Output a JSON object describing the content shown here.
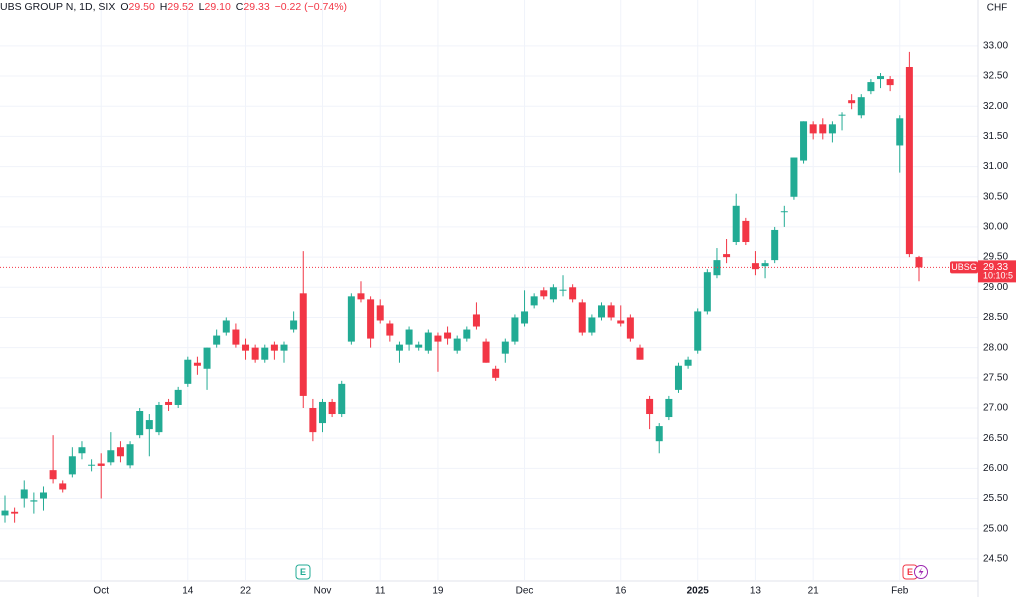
{
  "chart_data": {
    "type": "candlestick",
    "title": "UBS GROUP N, 1D, SIX",
    "ohlc_header": [
      {
        "key": "O",
        "value": "29.50"
      },
      {
        "key": "H",
        "value": "29.52"
      },
      {
        "key": "L",
        "value": "29.10"
      },
      {
        "key": "C",
        "value": "29.33"
      }
    ],
    "change": "−0.22 (−0.74%)",
    "currency": "CHF",
    "symbol": "UBSG",
    "countdown": "10:10:5",
    "events": [
      {
        "label": "E"
      },
      {
        "label": "E"
      }
    ],
    "up_color": "#22ab94",
    "down_color": "#f23645",
    "grid": true,
    "categories": [
      null,
      null,
      null,
      null,
      null,
      null,
      null,
      null,
      null,
      null,
      "Oct",
      null,
      null,
      null,
      null,
      null,
      null,
      null,
      null,
      "14",
      null,
      null,
      null,
      null,
      null,
      "22",
      null,
      null,
      null,
      null,
      null,
      null,
      null,
      "Nov",
      null,
      null,
      null,
      null,
      null,
      "11",
      null,
      null,
      null,
      null,
      null,
      "19",
      null,
      null,
      null,
      null,
      null,
      null,
      null,
      null,
      "Dec",
      null,
      null,
      null,
      null,
      null,
      null,
      null,
      null,
      null,
      "16",
      null,
      null,
      null,
      null,
      null,
      null,
      null,
      "2025",
      null,
      null,
      null,
      null,
      null,
      "13",
      null,
      null,
      null,
      null,
      null,
      "21",
      null,
      null,
      null,
      null,
      null,
      null,
      null,
      null,
      "Feb",
      null,
      null
    ],
    "open": [
      25.22,
      25.28,
      25.5,
      25.45,
      25.5,
      25.97,
      25.75,
      25.9,
      26.25,
      26.05,
      26.08,
      26.1,
      26.35,
      26.05,
      26.55,
      26.65,
      26.6,
      27.1,
      27.05,
      27.4,
      27.75,
      27.65,
      28.05,
      28.25,
      28.3,
      28.05,
      28.0,
      27.8,
      28.05,
      27.95,
      28.3,
      28.9,
      27.0,
      26.75,
      27.1,
      26.9,
      28.1,
      28.9,
      28.8,
      28.7,
      28.4,
      27.95,
      28.05,
      28.0,
      27.95,
      28.2,
      28.25,
      27.95,
      28.15,
      28.55,
      28.1,
      27.65,
      27.9,
      28.1,
      28.4,
      28.7,
      28.95,
      28.8,
      28.95,
      29.0,
      28.75,
      28.25,
      28.5,
      28.7,
      28.45,
      28.5,
      28.0,
      27.15,
      26.45,
      26.85,
      27.3,
      27.7,
      27.95,
      28.6,
      29.2,
      29.55,
      29.75,
      30.1,
      29.4,
      29.35,
      29.45,
      30.25,
      30.5,
      31.1,
      31.7,
      31.7,
      31.55,
      31.85,
      32.1,
      31.85,
      32.25,
      32.45,
      32.45,
      31.35,
      32.65,
      29.5
    ],
    "high": [
      25.55,
      25.35,
      25.8,
      25.6,
      25.7,
      26.55,
      25.8,
      26.35,
      26.45,
      26.15,
      26.25,
      26.6,
      26.45,
      26.45,
      27.0,
      26.9,
      27.1,
      27.15,
      27.35,
      27.85,
      27.85,
      28.0,
      28.3,
      28.5,
      28.4,
      28.15,
      28.05,
      28.05,
      28.1,
      28.1,
      28.6,
      29.6,
      27.15,
      27.15,
      27.15,
      27.45,
      28.9,
      29.1,
      28.85,
      28.8,
      28.45,
      28.1,
      28.35,
      28.1,
      28.3,
      28.25,
      28.35,
      28.2,
      28.35,
      28.75,
      28.15,
      27.7,
      28.15,
      28.55,
      28.95,
      28.9,
      29.0,
      29.05,
      29.2,
      29.05,
      28.8,
      28.55,
      28.75,
      28.75,
      28.7,
      28.55,
      28.05,
      27.2,
      26.75,
      27.2,
      27.75,
      27.85,
      28.65,
      29.3,
      29.65,
      29.8,
      30.55,
      30.15,
      29.6,
      29.45,
      30.0,
      30.35,
      31.15,
      31.75,
      31.75,
      31.8,
      31.75,
      31.9,
      32.2,
      32.2,
      32.45,
      32.55,
      32.5,
      31.85,
      32.9,
      29.52
    ],
    "low": [
      25.1,
      25.1,
      25.35,
      25.25,
      25.3,
      25.75,
      25.6,
      25.85,
      26.15,
      25.95,
      25.5,
      26.05,
      26.1,
      26.0,
      26.5,
      26.2,
      26.55,
      26.95,
      27.0,
      27.35,
      27.55,
      27.3,
      28.0,
      28.2,
      28.0,
      27.8,
      27.75,
      27.75,
      27.8,
      27.75,
      28.25,
      27.0,
      26.45,
      26.6,
      26.85,
      26.85,
      28.05,
      28.75,
      28.0,
      28.4,
      28.1,
      27.75,
      27.95,
      27.95,
      27.9,
      27.6,
      28.05,
      27.9,
      28.1,
      28.3,
      27.75,
      27.45,
      27.75,
      28.05,
      28.35,
      28.65,
      28.8,
      28.75,
      28.85,
      28.75,
      28.2,
      28.2,
      28.45,
      28.45,
      28.35,
      28.1,
      27.8,
      26.65,
      26.25,
      26.8,
      27.25,
      27.65,
      27.9,
      28.55,
      29.15,
      29.4,
      29.7,
      29.7,
      29.2,
      29.15,
      29.4,
      30.0,
      30.45,
      31.05,
      31.45,
      31.45,
      31.4,
      31.6,
      31.95,
      31.8,
      32.2,
      32.3,
      32.25,
      30.9,
      29.5,
      29.1
    ],
    "close": [
      25.3,
      25.25,
      25.65,
      25.47,
      25.6,
      25.82,
      25.65,
      26.2,
      26.35,
      26.06,
      26.04,
      26.3,
      26.2,
      26.4,
      26.95,
      26.8,
      27.05,
      27.05,
      27.3,
      27.8,
      27.7,
      28.0,
      28.2,
      28.45,
      28.05,
      27.95,
      27.8,
      28.0,
      27.95,
      28.05,
      28.45,
      27.2,
      26.6,
      27.1,
      26.9,
      27.4,
      28.85,
      28.8,
      28.15,
      28.45,
      28.2,
      28.05,
      28.3,
      28.05,
      28.25,
      28.1,
      28.15,
      28.15,
      28.3,
      28.35,
      27.75,
      27.5,
      28.1,
      28.5,
      28.6,
      28.85,
      28.85,
      29.0,
      28.96,
      28.8,
      28.25,
      28.5,
      28.7,
      28.5,
      28.4,
      28.15,
      27.8,
      26.9,
      26.7,
      27.15,
      27.7,
      27.8,
      28.6,
      29.25,
      29.45,
      29.5,
      30.35,
      29.75,
      29.3,
      29.4,
      29.95,
      30.26,
      31.15,
      31.75,
      31.55,
      31.55,
      31.7,
      31.86,
      32.05,
      32.15,
      32.4,
      32.5,
      32.35,
      31.8,
      29.55,
      29.33
    ],
    "ylim": [
      24.15,
      33.76
    ],
    "yticks": [
      {
        "value": 24.5,
        "label": "24.50"
      },
      {
        "value": 25,
        "label": "25.00"
      },
      {
        "value": 25.5,
        "label": "25.50"
      },
      {
        "value": 26,
        "label": "26.00"
      },
      {
        "value": 26.5,
        "label": "26.50"
      },
      {
        "value": 27,
        "label": "27.00"
      },
      {
        "value": 27.5,
        "label": "27.50"
      },
      {
        "value": 28,
        "label": "28.00"
      },
      {
        "value": 28.5,
        "label": "28.50"
      },
      {
        "value": 29,
        "label": "29.00"
      },
      {
        "value": 29.5,
        "label": "29.50"
      },
      {
        "value": 30,
        "label": "30.00"
      },
      {
        "value": 30.5,
        "label": "30.50"
      },
      {
        "value": 31,
        "label": "31.00"
      },
      {
        "value": 31.5,
        "label": "31.50"
      },
      {
        "value": 32,
        "label": "32.00"
      },
      {
        "value": 32.5,
        "label": "32.50"
      },
      {
        "value": 33,
        "label": "33.00"
      }
    ]
  }
}
